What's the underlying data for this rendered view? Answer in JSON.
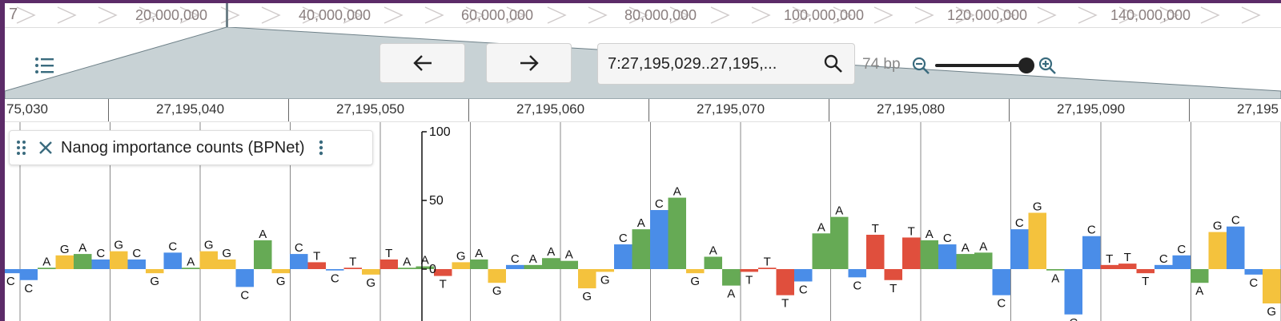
{
  "overview": {
    "chromosome": "7",
    "ticks": [
      "20,000,000",
      "40,000,000",
      "60,000,000",
      "80,000,000",
      "100,000,000",
      "120,000,000",
      "140,000,000"
    ]
  },
  "header": {
    "back_icon": "arrow-left-icon",
    "forward_icon": "arrow-right-icon",
    "location_value": "7:27,195,029..27,195,...",
    "bp_label": "74 bp",
    "zoom_level": 0.95
  },
  "ruler": {
    "first_partial_label": "75,030",
    "labels": [
      "27,195,040",
      "27,195,050",
      "27,195,060",
      "27,195,070",
      "27,195,080",
      "27,195,090",
      "27,195"
    ]
  },
  "track": {
    "title": "Nanog importance counts (BPNet)",
    "axis_ticks": [
      "100",
      "50",
      "0"
    ]
  },
  "colors": {
    "A": "#66aa55",
    "C": "#4a8de8",
    "G": "#f4c23d",
    "T": "#e04f3d",
    "frame": "#5c2b68",
    "zoom_polygon": "#c8d2d5"
  },
  "chart_data": {
    "type": "bar",
    "ylim": [
      -30,
      100
    ],
    "bases": [
      {
        "b": "C",
        "v": -3
      },
      {
        "b": "C",
        "v": -8
      },
      {
        "b": "A",
        "v": 1
      },
      {
        "b": "G",
        "v": 10
      },
      {
        "b": "A",
        "v": 11
      },
      {
        "b": "C",
        "v": 7
      },
      {
        "b": "G",
        "v": 13
      },
      {
        "b": "C",
        "v": 7
      },
      {
        "b": "G",
        "v": -3
      },
      {
        "b": "C",
        "v": 12
      },
      {
        "b": "A",
        "v": 1
      },
      {
        "b": "G",
        "v": 13
      },
      {
        "b": "G",
        "v": 7
      },
      {
        "b": "C",
        "v": -13
      },
      {
        "b": "A",
        "v": 21
      },
      {
        "b": "G",
        "v": -3
      },
      {
        "b": "C",
        "v": 11
      },
      {
        "b": "T",
        "v": 5
      },
      {
        "b": "C",
        "v": -1
      },
      {
        "b": "T",
        "v": 1
      },
      {
        "b": "G",
        "v": -4
      },
      {
        "b": "T",
        "v": 7
      },
      {
        "b": "A",
        "v": 1
      },
      {
        "b": "A",
        "v": 2
      },
      {
        "b": "T",
        "v": -5
      },
      {
        "b": "G",
        "v": 5
      },
      {
        "b": "A",
        "v": 7
      },
      {
        "b": "G",
        "v": -10
      },
      {
        "b": "C",
        "v": 3
      },
      {
        "b": "A",
        "v": 3
      },
      {
        "b": "A",
        "v": 8
      },
      {
        "b": "A",
        "v": 6
      },
      {
        "b": "G",
        "v": -14
      },
      {
        "b": "G",
        "v": -2
      },
      {
        "b": "C",
        "v": 18
      },
      {
        "b": "A",
        "v": 29
      },
      {
        "b": "C",
        "v": 43
      },
      {
        "b": "A",
        "v": 52
      },
      {
        "b": "G",
        "v": -3
      },
      {
        "b": "A",
        "v": 9
      },
      {
        "b": "A",
        "v": -12
      },
      {
        "b": "T",
        "v": -2
      },
      {
        "b": "T",
        "v": 1
      },
      {
        "b": "T",
        "v": -19
      },
      {
        "b": "C",
        "v": -9
      },
      {
        "b": "A",
        "v": 26
      },
      {
        "b": "A",
        "v": 38
      },
      {
        "b": "C",
        "v": -6
      },
      {
        "b": "T",
        "v": 25
      },
      {
        "b": "T",
        "v": -8
      },
      {
        "b": "T",
        "v": 23
      },
      {
        "b": "A",
        "v": 21
      },
      {
        "b": "C",
        "v": 18
      },
      {
        "b": "A",
        "v": 11
      },
      {
        "b": "A",
        "v": 12
      },
      {
        "b": "C",
        "v": -19
      },
      {
        "b": "C",
        "v": 29
      },
      {
        "b": "G",
        "v": 41
      },
      {
        "b": "A",
        "v": -1
      },
      {
        "b": "C",
        "v": -33
      },
      {
        "b": "C",
        "v": 24
      },
      {
        "b": "T",
        "v": 3
      },
      {
        "b": "T",
        "v": 4
      },
      {
        "b": "T",
        "v": -3
      },
      {
        "b": "C",
        "v": 3
      },
      {
        "b": "C",
        "v": 10
      },
      {
        "b": "A",
        "v": -10
      },
      {
        "b": "G",
        "v": 27
      },
      {
        "b": "C",
        "v": 31
      },
      {
        "b": "C",
        "v": -4
      },
      {
        "b": "G",
        "v": -25
      },
      {
        "b": "C",
        "v": 3
      }
    ]
  }
}
